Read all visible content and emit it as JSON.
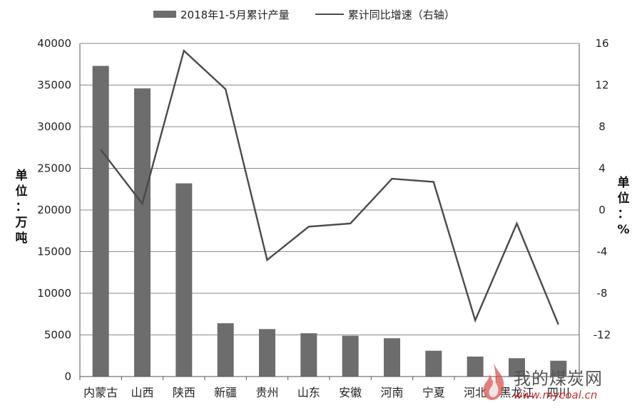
{
  "chart_data": {
    "type": "bar+line",
    "categories": [
      "内蒙古",
      "山西",
      "陕西",
      "新疆",
      "贵州",
      "山东",
      "安徽",
      "河南",
      "宁夏",
      "河北",
      "黑龙江",
      "四川"
    ],
    "series": [
      {
        "name": "2018年1-5月累计产量",
        "type": "bar",
        "axis": "left",
        "color": "#6d6d6d",
        "values": [
          37300,
          34600,
          23200,
          6400,
          5700,
          5200,
          4900,
          4600,
          3100,
          2400,
          2200,
          1900
        ]
      },
      {
        "name": "累计同比增速（右轴）",
        "type": "line",
        "axis": "right",
        "color": "#4a4a4a",
        "values": [
          5.8,
          0.6,
          15.3,
          11.6,
          -4.8,
          -1.6,
          -1.3,
          3.0,
          2.7,
          -10.6,
          -1.3,
          -11.0
        ]
      }
    ],
    "y_left": {
      "label_chars": [
        "单",
        "位",
        "：",
        "万",
        "吨"
      ],
      "ylim": [
        0,
        40000
      ],
      "ticks": [
        0,
        5000,
        10000,
        15000,
        20000,
        25000,
        30000,
        35000,
        40000
      ]
    },
    "y_right": {
      "label_chars": [
        "单",
        "位",
        "：",
        "%"
      ],
      "ylim": [
        -16,
        16
      ],
      "ticks": [
        -12,
        -8,
        -4,
        0,
        4,
        8,
        12,
        16
      ]
    },
    "grid": true,
    "legend_position": "top"
  },
  "watermark": {
    "brand": "我的煤炭网",
    "url": "www.mycoal.cn"
  }
}
